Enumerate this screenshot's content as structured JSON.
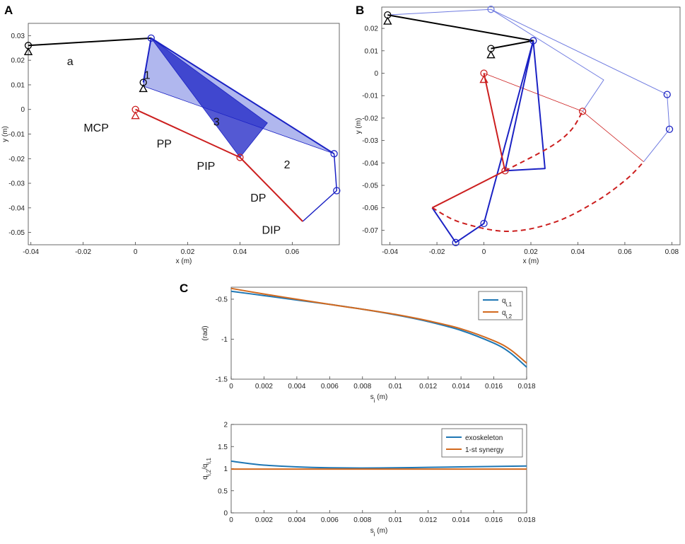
{
  "panels": [
    "A",
    "B",
    "C"
  ],
  "colors": {
    "black": "#000000",
    "blue": "#1b22c4",
    "red": "#cc1f1f",
    "light_blue": "#6f7be0",
    "line1": "#1f77b4",
    "line2": "#d2691e"
  },
  "chart_data": [
    {
      "id": "A",
      "type": "scatter",
      "title": "",
      "xlabel": "x (m)",
      "ylabel": "y (m)",
      "xlim": [
        -0.041,
        0.078
      ],
      "ylim": [
        -0.055,
        0.035
      ],
      "xticks": [
        -0.04,
        -0.02,
        0,
        0.02,
        0.04,
        0.06
      ],
      "xticklabels": [
        "-0.04",
        "-0.02",
        "0",
        "0.02",
        "0.04",
        "0.06"
      ],
      "yticks": [
        0.03,
        0.02,
        0.01,
        0,
        -0.01,
        -0.02,
        -0.03,
        -0.04,
        -0.05
      ],
      "yticklabels": [
        "0.03",
        "0.02",
        "0.01",
        "0",
        "-0.01",
        "-0.02",
        "-0.03",
        "-0.04",
        "-0.05"
      ],
      "grid": false,
      "polygons": [
        {
          "color": "light_blue",
          "opacity": 0.55,
          "points": [
            [
              0.006,
              0.029
            ],
            [
              0.003,
              0.0095
            ],
            [
              0.076,
              -0.018
            ]
          ]
        },
        {
          "color": "blue",
          "opacity": 0.75,
          "points": [
            [
              0.006,
              0.029
            ],
            [
              0.0505,
              -0.0055
            ],
            [
              0.04,
              -0.0195
            ]
          ]
        }
      ],
      "lines": [
        {
          "color": "black",
          "width": 2,
          "points": [
            [
              -0.041,
              0.026
            ],
            [
              0.006,
              0.029
            ]
          ]
        },
        {
          "color": "blue",
          "width": 2,
          "points": [
            [
              0.006,
              0.029
            ],
            [
              0.003,
              0.011
            ]
          ]
        },
        {
          "color": "blue",
          "width": 2,
          "points": [
            [
              0.006,
              0.029
            ],
            [
              0.076,
              -0.018
            ]
          ]
        },
        {
          "color": "blue",
          "width": 1.5,
          "points": [
            [
              0.076,
              -0.018
            ],
            [
              0.077,
              -0.033
            ],
            [
              0.064,
              -0.0455
            ]
          ]
        },
        {
          "color": "red",
          "width": 2,
          "points": [
            [
              0,
              0
            ],
            [
              0.04,
              -0.0195
            ],
            [
              0.064,
              -0.0455
            ]
          ]
        }
      ],
      "joints": [
        {
          "color": "black",
          "x": -0.041,
          "y": 0.026
        },
        {
          "color": "blue",
          "x": 0.006,
          "y": 0.029
        },
        {
          "color": "black",
          "x": 0.003,
          "y": 0.011
        },
        {
          "color": "red",
          "x": 0,
          "y": 0
        },
        {
          "color": "red",
          "x": 0.04,
          "y": -0.0195
        },
        {
          "color": "blue",
          "x": 0.076,
          "y": -0.018
        },
        {
          "color": "blue",
          "x": 0.077,
          "y": -0.033
        }
      ],
      "grounds": [
        {
          "color": "black",
          "x": -0.041,
          "y": 0.026
        },
        {
          "color": "black",
          "x": 0.003,
          "y": 0.011
        },
        {
          "color": "red",
          "x": 0,
          "y": 0
        }
      ],
      "annotations": [
        {
          "text": "a",
          "x": -0.025,
          "y": 0.018
        },
        {
          "text": "1",
          "x": 0.0045,
          "y": 0.0125
        },
        {
          "text": "MCP",
          "x": -0.015,
          "y": -0.009
        },
        {
          "text": "3",
          "x": 0.031,
          "y": -0.0065
        },
        {
          "text": "PP",
          "x": 0.011,
          "y": -0.0155
        },
        {
          "text": "PIP",
          "x": 0.027,
          "y": -0.0245
        },
        {
          "text": "2",
          "x": 0.058,
          "y": -0.024
        },
        {
          "text": "DP",
          "x": 0.047,
          "y": -0.0375
        },
        {
          "text": "DIP",
          "x": 0.052,
          "y": -0.0505
        }
      ]
    },
    {
      "id": "B",
      "type": "scatter",
      "title": "",
      "xlabel": "x (m)",
      "ylabel": "y (m)",
      "xlim": [
        -0.0435,
        0.0835
      ],
      "ylim": [
        -0.0765,
        0.0295
      ],
      "xticks": [
        -0.04,
        -0.02,
        0,
        0.02,
        0.04,
        0.06,
        0.08
      ],
      "xticklabels": [
        "-0.04",
        "-0.02",
        "0",
        "0.02",
        "0.04",
        "0.06",
        "0.08"
      ],
      "yticks": [
        0.02,
        0.01,
        0,
        -0.01,
        -0.02,
        -0.03,
        -0.04,
        -0.05,
        -0.06,
        -0.07
      ],
      "yticklabels": [
        "0.02",
        "0.01",
        "0",
        "-0.01",
        "-0.02",
        "-0.03",
        "-0.04",
        "-0.05",
        "-0.06",
        "-0.07"
      ],
      "grid": false,
      "lines": [
        {
          "color": "light_blue",
          "width": 1,
          "points": [
            [
              -0.041,
              0.026
            ],
            [
              0.003,
              0.0285
            ],
            [
              0.051,
              -0.003
            ],
            [
              0.042,
              -0.017
            ]
          ]
        },
        {
          "color": "light_blue",
          "width": 1,
          "points": [
            [
              0.003,
              0.0285
            ],
            [
              0.078,
              -0.0095
            ],
            [
              0.079,
              -0.025
            ],
            [
              0.068,
              -0.0395
            ]
          ]
        },
        {
          "color": "red",
          "width": 0.8,
          "points": [
            [
              0,
              0
            ],
            [
              0.042,
              -0.017
            ],
            [
              0.068,
              -0.0395
            ]
          ]
        },
        {
          "color": "black",
          "width": 2,
          "points": [
            [
              -0.041,
              0.026
            ],
            [
              0.021,
              0.0145
            ],
            [
              0.003,
              0.011
            ]
          ]
        },
        {
          "color": "blue",
          "width": 2,
          "points": [
            [
              0.021,
              0.0145
            ],
            [
              0.009,
              -0.0435
            ],
            [
              0.026,
              -0.0425
            ],
            [
              0.021,
              0.0145
            ]
          ]
        },
        {
          "color": "blue",
          "width": 2,
          "points": [
            [
              0.021,
              0.0145
            ],
            [
              0,
              -0.067
            ],
            [
              -0.012,
              -0.0755
            ],
            [
              -0.022,
              -0.06
            ]
          ]
        },
        {
          "color": "red",
          "width": 2,
          "points": [
            [
              0,
              0
            ],
            [
              0.009,
              -0.0435
            ],
            [
              -0.022,
              -0.06
            ]
          ]
        }
      ],
      "dashed_arcs": [
        {
          "color": "red",
          "points": [
            [
              -0.022,
              -0.06
            ],
            [
              -0.01,
              -0.0665
            ],
            [
              0.01,
              -0.0705
            ],
            [
              0.03,
              -0.0665
            ],
            [
              0.048,
              -0.057
            ],
            [
              0.061,
              -0.047
            ],
            [
              0.068,
              -0.0395
            ]
          ]
        },
        {
          "color": "red",
          "points": [
            [
              0.009,
              -0.0435
            ],
            [
              0.028,
              -0.033
            ],
            [
              0.037,
              -0.0255
            ],
            [
              0.042,
              -0.017
            ]
          ]
        }
      ],
      "joints": [
        {
          "color": "black",
          "x": -0.041,
          "y": 0.026
        },
        {
          "color": "light_blue",
          "x": 0.003,
          "y": 0.0285
        },
        {
          "color": "black",
          "x": 0.003,
          "y": 0.011
        },
        {
          "color": "blue",
          "x": 0.021,
          "y": 0.0145
        },
        {
          "color": "red",
          "x": 0,
          "y": 0
        },
        {
          "color": "red",
          "x": 0.042,
          "y": -0.017
        },
        {
          "color": "blue",
          "x": 0.078,
          "y": -0.0095
        },
        {
          "color": "blue",
          "x": 0.079,
          "y": -0.025
        },
        {
          "color": "red",
          "x": 0.009,
          "y": -0.0435
        },
        {
          "color": "blue",
          "x": 0,
          "y": -0.067
        },
        {
          "color": "blue",
          "x": -0.012,
          "y": -0.0755
        }
      ],
      "grounds": [
        {
          "color": "black",
          "x": -0.041,
          "y": 0.026
        },
        {
          "color": "black",
          "x": 0.003,
          "y": 0.011
        },
        {
          "color": "red",
          "x": 0,
          "y": 0
        }
      ]
    },
    {
      "id": "C1",
      "type": "line",
      "title": "",
      "xlabel": "s",
      "xlabel_sub": "i",
      "xlabel_unit": " (m)",
      "ylabel": "(rad)",
      "xlim": [
        0,
        0.018
      ],
      "ylim": [
        -1.5,
        -0.35
      ],
      "xticks": [
        0,
        0.002,
        0.004,
        0.006,
        0.008,
        0.01,
        0.012,
        0.014,
        0.016,
        0.018
      ],
      "xticklabels": [
        "0",
        "0.002",
        "0.004",
        "0.006",
        "0.008",
        "0.01",
        "0.012",
        "0.014",
        "0.016",
        "0.018"
      ],
      "yticks": [
        -0.5,
        -1,
        -1.5
      ],
      "yticklabels": [
        "-0.5",
        "-1",
        "-1.5"
      ],
      "grid": false,
      "legend_position": "top-right",
      "series": [
        {
          "name": "q",
          "name_sub": "i,1",
          "color": "line1",
          "x": [
            0,
            0.002,
            0.004,
            0.006,
            0.008,
            0.01,
            0.012,
            0.014,
            0.016,
            0.017,
            0.018
          ],
          "values": [
            -0.4,
            -0.455,
            -0.51,
            -0.565,
            -0.625,
            -0.695,
            -0.78,
            -0.89,
            -1.05,
            -1.17,
            -1.35
          ]
        },
        {
          "name": "q",
          "name_sub": "i,2",
          "color": "line2",
          "x": [
            0,
            0.002,
            0.004,
            0.006,
            0.008,
            0.01,
            0.012,
            0.014,
            0.016,
            0.017,
            0.018
          ],
          "values": [
            -0.365,
            -0.435,
            -0.5,
            -0.565,
            -0.625,
            -0.69,
            -0.77,
            -0.87,
            -1.02,
            -1.13,
            -1.3
          ]
        }
      ]
    },
    {
      "id": "C2",
      "type": "line",
      "title": "",
      "xlabel": "s",
      "xlabel_sub": "i",
      "xlabel_unit": " (m)",
      "ylabel": "q",
      "ylabel_sub1": "i,2",
      "ylabel_mid": "/q",
      "ylabel_sub2": "i,1",
      "xlim": [
        0,
        0.018
      ],
      "ylim": [
        0,
        2
      ],
      "xticks": [
        0,
        0.002,
        0.004,
        0.006,
        0.008,
        0.01,
        0.012,
        0.014,
        0.016,
        0.018
      ],
      "xticklabels": [
        "0",
        "0.002",
        "0.004",
        "0.006",
        "0.008",
        "0.01",
        "0.012",
        "0.014",
        "0.016",
        "0.018"
      ],
      "yticks": [
        0,
        0.5,
        1,
        1.5,
        2
      ],
      "yticklabels": [
        "0",
        "0.5",
        "1",
        "1.5",
        "2"
      ],
      "grid": false,
      "legend_position": "top-right",
      "series": [
        {
          "name": "exoskeleton",
          "color": "line1",
          "x": [
            0,
            0.001,
            0.002,
            0.004,
            0.006,
            0.008,
            0.01,
            0.012,
            0.014,
            0.016,
            0.018
          ],
          "values": [
            1.17,
            1.12,
            1.08,
            1.04,
            1.02,
            1.015,
            1.02,
            1.03,
            1.04,
            1.05,
            1.06
          ]
        },
        {
          "name": "1-st synergy",
          "color": "line2",
          "x": [
            0,
            0.018
          ],
          "values": [
            0.99,
            0.99
          ]
        }
      ]
    }
  ]
}
